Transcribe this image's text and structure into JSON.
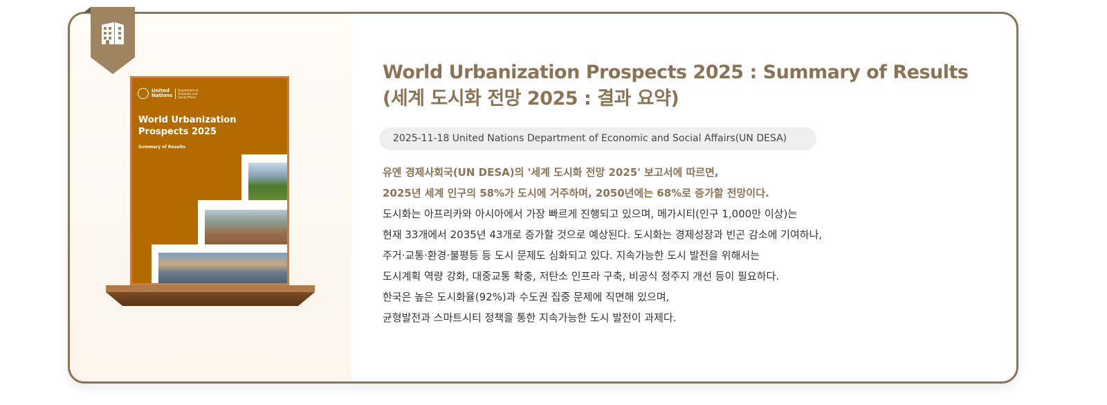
{
  "report": {
    "title_en": "World Urbanization Prospects 2025 : Summary of Results",
    "title_ko": "(세계 도시화 전망 2025 : 결과 요약)",
    "meta": "2025-11-18 United Nations Department of Economic and Social Affairs(UN DESA)",
    "highlight_lines": [
      "유엔 경제사회국(UN DESA)의 '세계 도시화 전망 2025' 보고서에 따르면,",
      "2025년 세계 인구의 58%가 도시에 거주하며, 2050년에는 68%로 증가할 전망이다."
    ],
    "body_lines": [
      "도시화는 아프리카와 아시아에서 가장 빠르게 진행되고 있으며, 메가시티(인구 1,000만 이상)는",
      "현재 33개에서 2035년 43개로 증가할 것으로 예상된다. 도시화는 경제성장과 빈곤 감소에 기여하나,",
      "주거·교통·환경·불평등 등 도시 문제도 심화되고 있다. 지속가능한 도시 발전을 위해서는",
      "도시계획 역량 강화, 대중교통 확충, 저탄소 인프라 구축, 비공식 정주지 개선 등이 필요하다.",
      "한국은 높은 도시화율(92%)과 수도권 집중 문제에 직면해 있으며,",
      "균형발전과 스마트시티 정책을 통한 지속가능한 도시 발전이 과제다."
    ]
  },
  "cover": {
    "org_line1": "United",
    "org_line2": "Nations",
    "dept": "Department of Economic and Social Affairs",
    "title_line1": "World Urbanization",
    "title_line2": "Prospects 2025",
    "subtitle": "Summary of Results"
  },
  "ribbon_icon": "building-icon",
  "colors": {
    "accent": "#8b7355",
    "ribbon": "#9e8460",
    "cover": "#b36b00"
  }
}
